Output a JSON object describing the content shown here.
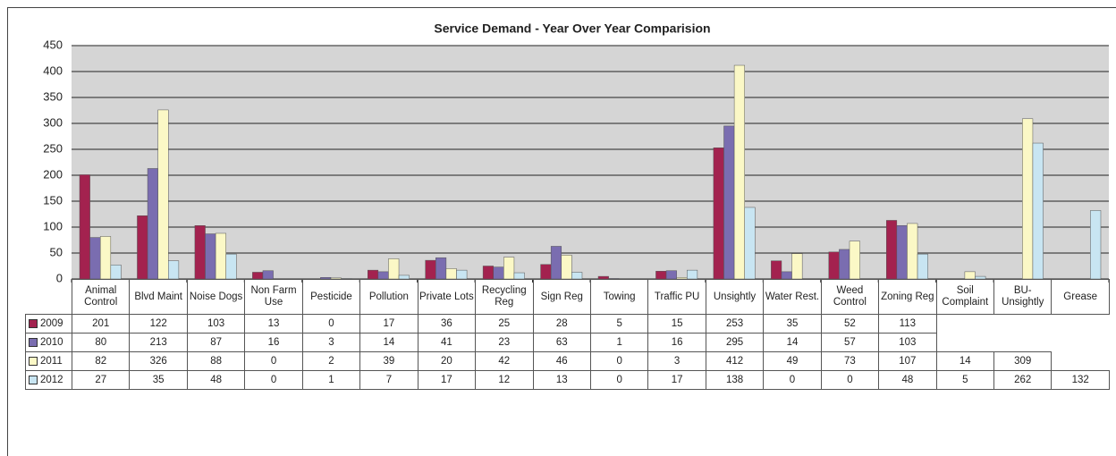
{
  "chart_data": {
    "type": "bar",
    "title": "Service Demand - Year Over Year Comparision",
    "categories": [
      "Animal Control",
      "Blvd Maint",
      "Noise Dogs",
      "Non Farm Use",
      "Pesticide",
      "Pollution",
      "Private Lots",
      "Recycling Reg",
      "Sign Reg",
      "Towing",
      "Traffic PU",
      "Unsightly",
      "Water Rest.",
      "Weed Control",
      "Zoning Reg",
      "Soil Complaint",
      "BU-Unsightly",
      "Grease"
    ],
    "series": [
      {
        "name": "2009",
        "color": "#a3224f",
        "values": [
          201,
          122,
          103,
          13,
          0,
          17,
          36,
          25,
          28,
          5,
          15,
          253,
          35,
          52,
          113,
          null,
          null,
          null
        ]
      },
      {
        "name": "2010",
        "color": "#7a6db0",
        "values": [
          80,
          213,
          87,
          16,
          3,
          14,
          41,
          23,
          63,
          1,
          16,
          295,
          14,
          57,
          103,
          null,
          null,
          null
        ]
      },
      {
        "name": "2011",
        "color": "#fbf8c6",
        "values": [
          82,
          326,
          88,
          0,
          2,
          39,
          20,
          42,
          46,
          0,
          3,
          412,
          49,
          73,
          107,
          14,
          309,
          null
        ]
      },
      {
        "name": "2012",
        "color": "#c8e5f2",
        "values": [
          27,
          35,
          48,
          0,
          1,
          7,
          17,
          12,
          13,
          0,
          17,
          138,
          0,
          0,
          48,
          5,
          262,
          132
        ]
      }
    ],
    "ylim": [
      0,
      450
    ],
    "yticks": [
      0,
      50,
      100,
      150,
      200,
      250,
      300,
      350,
      400,
      450
    ],
    "grid": true
  }
}
